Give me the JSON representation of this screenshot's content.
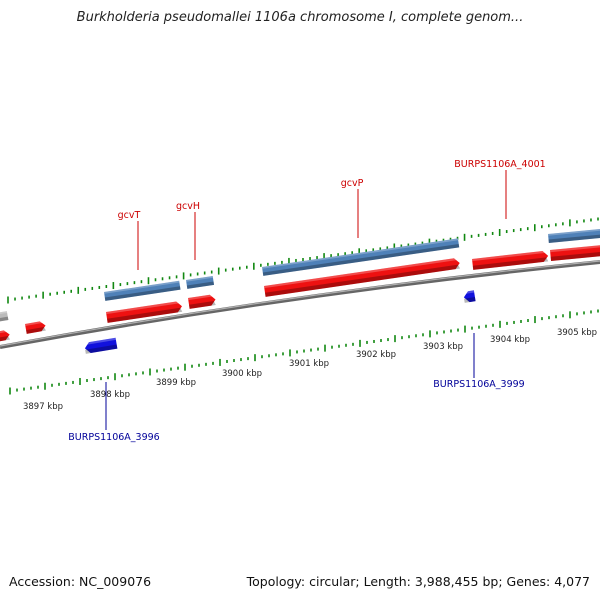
{
  "header": {
    "title": "Burkholderia pseudomallei 1106a chromosome I, complete genom..."
  },
  "footer": {
    "accession": "Accession: NC_009076",
    "summary": "Topology: circular; Length: 3,988,455 bp; Genes: 4,077"
  },
  "scale": {
    "unit": "kbp",
    "labels": [
      "3897 kbp",
      "3898 kbp",
      "3899 kbp",
      "3900 kbp",
      "3901 kbp",
      "3902 kbp",
      "3903 kbp",
      "3904 kbp",
      "3905 kbp"
    ]
  },
  "genes": {
    "forward_labels": [
      "gcvT",
      "gcvH",
      "gcvP",
      "BURPS1106A_4001"
    ],
    "reverse_labels": [
      "BURPS1106A_3996",
      "BURPS1106A_3999"
    ]
  },
  "colors": {
    "forward_label": "#cc0000",
    "reverse_label": "#000099",
    "gene_red": "#ee1111",
    "gene_steelblue": "#4f81b8",
    "gene_blue": "#1111dd",
    "gene_gray": "#bbbbbb",
    "backbone": "#888888",
    "tick_green": "#118811"
  }
}
